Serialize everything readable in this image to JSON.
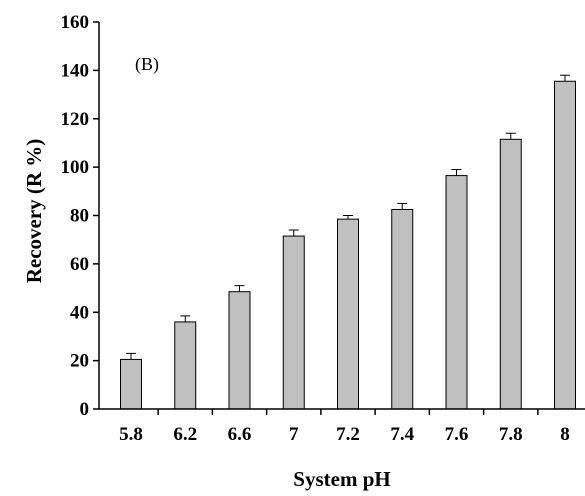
{
  "chart_data": {
    "type": "bar",
    "panel_label": "(B)",
    "xlabel": "System pH",
    "ylabel": "Recovery (R %)",
    "categories": [
      "5.8",
      "6.2",
      "6.6",
      "7",
      "7.2",
      "7.4",
      "7.6",
      "7.8",
      "8"
    ],
    "values": [
      20.5,
      36,
      48.5,
      71.5,
      78.5,
      82.5,
      96.5,
      111.5,
      135.5
    ],
    "errors": [
      2.5,
      2.5,
      2.5,
      2.5,
      1.5,
      2.5,
      2.5,
      2.5,
      2.5
    ],
    "ylim": [
      0,
      160
    ],
    "yticks": [
      0,
      20,
      40,
      60,
      80,
      100,
      120,
      140,
      160
    ],
    "grid": false,
    "bar_color": "#c0c0c0",
    "bar_edge_color": "#000000"
  }
}
